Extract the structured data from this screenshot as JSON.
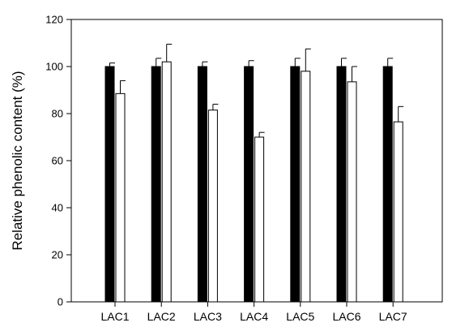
{
  "chart_data": {
    "type": "bar",
    "title": "",
    "xlabel": "",
    "ylabel": "Relative phenolic content (%)",
    "ylim": [
      0,
      120
    ],
    "yticks": [
      0,
      20,
      40,
      60,
      80,
      100,
      120
    ],
    "grid": false,
    "legend": "none",
    "categories": [
      "LAC1",
      "LAC2",
      "LAC3",
      "LAC4",
      "LAC5",
      "LAC6",
      "LAC7"
    ],
    "series": [
      {
        "fill": "#000000",
        "values": [
          100,
          100,
          100,
          100,
          100,
          100,
          100
        ],
        "errors": [
          1.5,
          3.5,
          2,
          2.5,
          3.5,
          3.5,
          3.5
        ]
      },
      {
        "fill": "#ffffff",
        "values": [
          88.5,
          102,
          81.5,
          70,
          98,
          93.5,
          76.5
        ],
        "errors": [
          5.5,
          7.5,
          2.5,
          2,
          9.5,
          6.5,
          6.5
        ]
      }
    ]
  }
}
